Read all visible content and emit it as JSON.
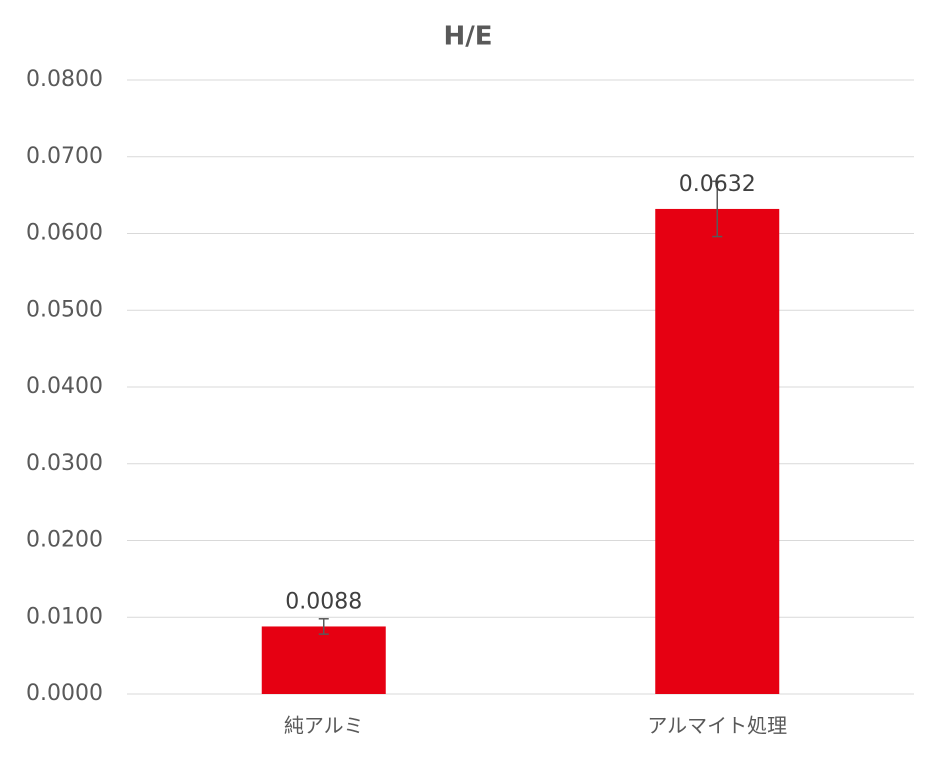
{
  "chart_data": {
    "type": "bar",
    "title": "H/E",
    "categories": [
      "純アルミ",
      "アルマイト処理"
    ],
    "values": [
      0.0088,
      0.0632
    ],
    "errors": [
      0.001,
      0.0036
    ],
    "color": "#e60012",
    "ylim": [
      0,
      0.08
    ],
    "yticks": [
      {
        "value": 0,
        "label": "0.0000"
      },
      {
        "value": 0.01,
        "label": "0.0100"
      },
      {
        "value": 0.02,
        "label": "0.0200"
      },
      {
        "value": 0.03,
        "label": "0.0300"
      },
      {
        "value": 0.04,
        "label": "0.0400"
      },
      {
        "value": 0.05,
        "label": "0.0500"
      },
      {
        "value": 0.06,
        "label": "0.0600"
      },
      {
        "value": 0.07,
        "label": "0.0700"
      },
      {
        "value": 0.08,
        "label": "0.0800"
      }
    ],
    "grid": true
  }
}
